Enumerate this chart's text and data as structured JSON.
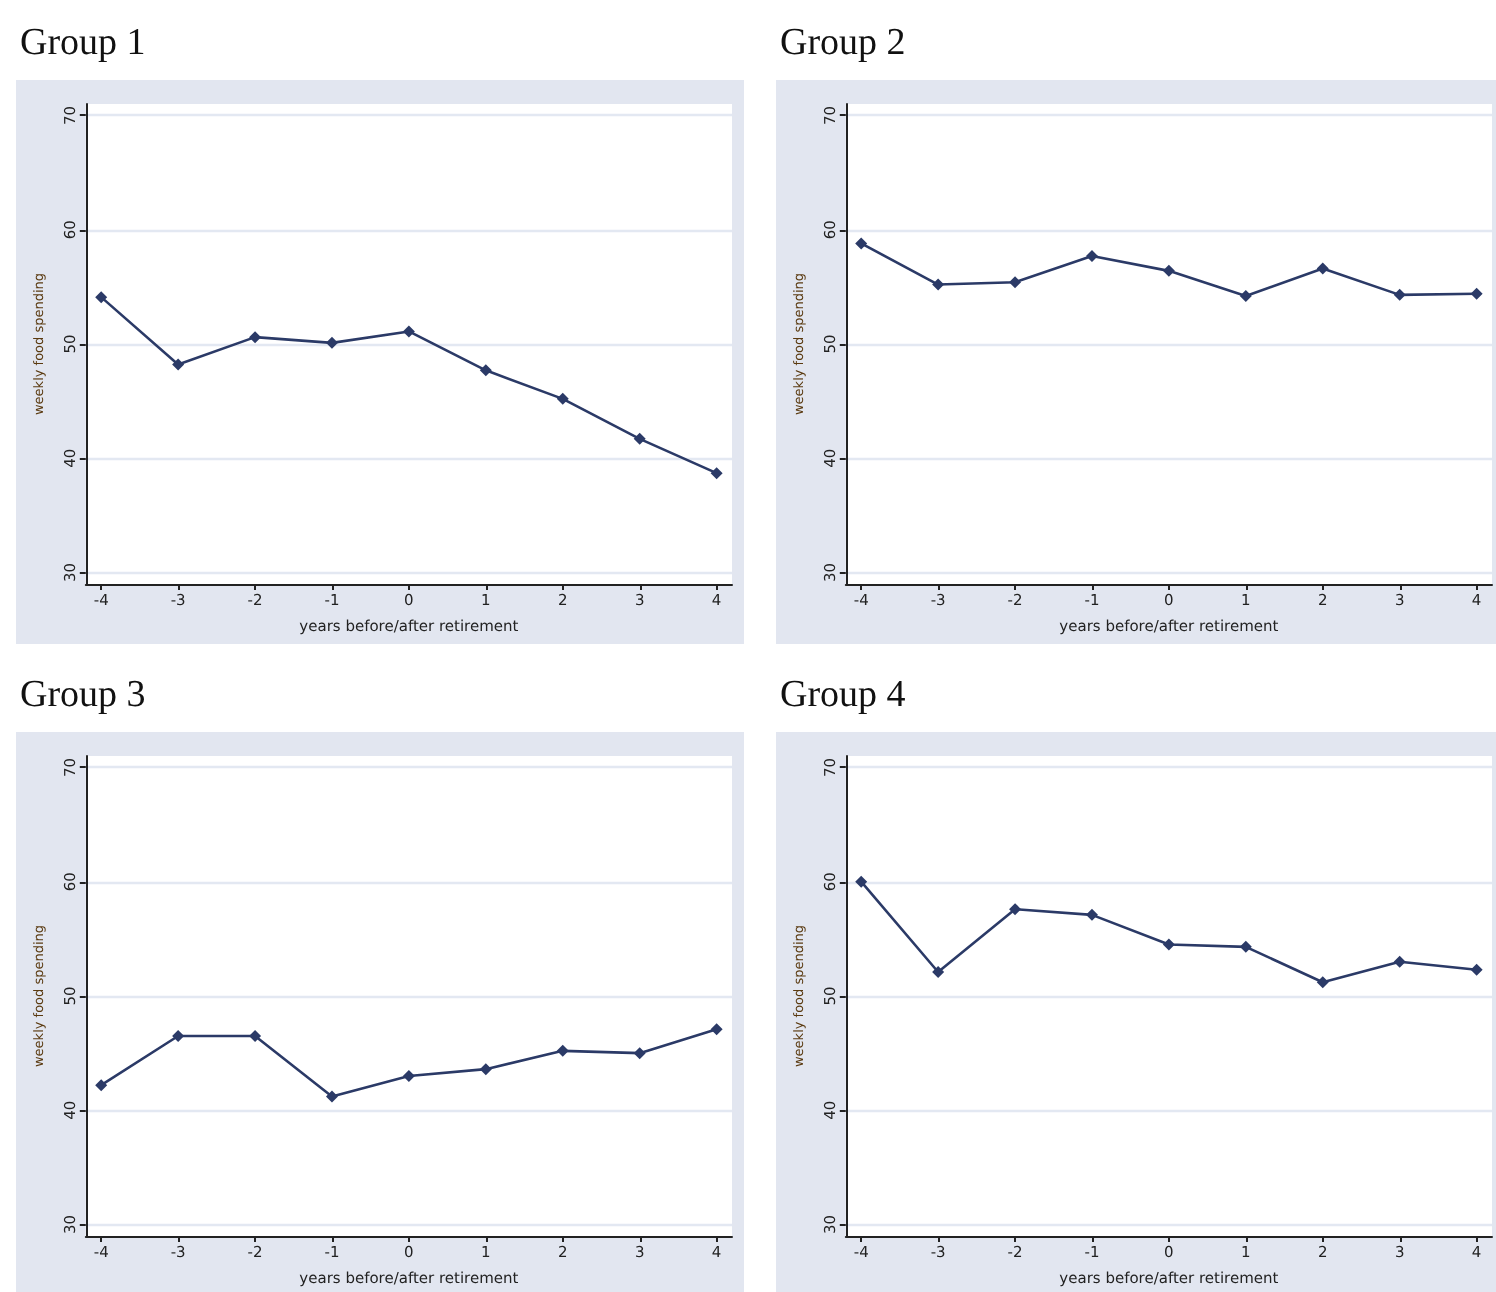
{
  "chart_data": [
    {
      "type": "line",
      "title": "Group 1",
      "xlabel": "years before/after retirement",
      "ylabel": "weekly food spending",
      "x": [
        -4,
        -3,
        -2,
        -1,
        0,
        1,
        2,
        3,
        4
      ],
      "series": [
        {
          "color": "#2b3a67",
          "values": [
            54.1,
            48.2,
            50.6,
            50.1,
            51.1,
            47.7,
            45.2,
            41.7,
            38.7
          ]
        }
      ],
      "xlim": [
        -4.2,
        4.2
      ],
      "xticks": [
        -4,
        -3,
        -2,
        -1,
        0,
        1,
        2,
        3,
        4
      ],
      "ylim": [
        29,
        71
      ],
      "yticks": [
        30,
        40,
        50,
        60,
        70
      ],
      "grid": "y",
      "marker": "diamond"
    },
    {
      "type": "line",
      "title": "Group 2",
      "xlabel": "years before/after retirement",
      "ylabel": "weekly food spending",
      "x": [
        -4,
        -3,
        -2,
        -1,
        0,
        1,
        2,
        3,
        4
      ],
      "series": [
        {
          "color": "#2b3a67",
          "values": [
            58.8,
            55.2,
            55.4,
            57.7,
            56.4,
            54.2,
            56.6,
            54.3,
            54.4
          ]
        }
      ],
      "xlim": [
        -4.2,
        4.2
      ],
      "xticks": [
        -4,
        -3,
        -2,
        -1,
        0,
        1,
        2,
        3,
        4
      ],
      "ylim": [
        29,
        71
      ],
      "yticks": [
        30,
        40,
        50,
        60,
        70
      ],
      "grid": "y",
      "marker": "diamond"
    },
    {
      "type": "line",
      "title": "Group 3",
      "xlabel": "years before/after retirement",
      "ylabel": "weekly food spending",
      "x": [
        -4,
        -3,
        -2,
        -1,
        0,
        1,
        2,
        3,
        4
      ],
      "series": [
        {
          "color": "#2b3a67",
          "values": [
            42.2,
            46.5,
            46.5,
            41.2,
            43.0,
            43.6,
            45.2,
            45.0,
            47.1
          ]
        }
      ],
      "xlim": [
        -4.2,
        4.2
      ],
      "xticks": [
        -4,
        -3,
        -2,
        -1,
        0,
        1,
        2,
        3,
        4
      ],
      "ylim": [
        29,
        71
      ],
      "yticks": [
        30,
        40,
        50,
        60,
        70
      ],
      "grid": "y",
      "marker": "diamond"
    },
    {
      "type": "line",
      "title": "Group 4",
      "xlabel": "years before/after retirement",
      "ylabel": "weekly food spending",
      "x": [
        -4,
        -3,
        -2,
        -1,
        0,
        1,
        2,
        3,
        4
      ],
      "series": [
        {
          "color": "#2b3a67",
          "values": [
            60.0,
            52.1,
            57.6,
            57.1,
            54.5,
            54.3,
            51.2,
            53.0,
            52.3
          ]
        }
      ],
      "xlim": [
        -4.2,
        4.2
      ],
      "xticks": [
        -4,
        -3,
        -2,
        -1,
        0,
        1,
        2,
        3,
        4
      ],
      "ylim": [
        29,
        71
      ],
      "yticks": [
        30,
        40,
        50,
        60,
        70
      ],
      "grid": "y",
      "marker": "diamond"
    }
  ]
}
